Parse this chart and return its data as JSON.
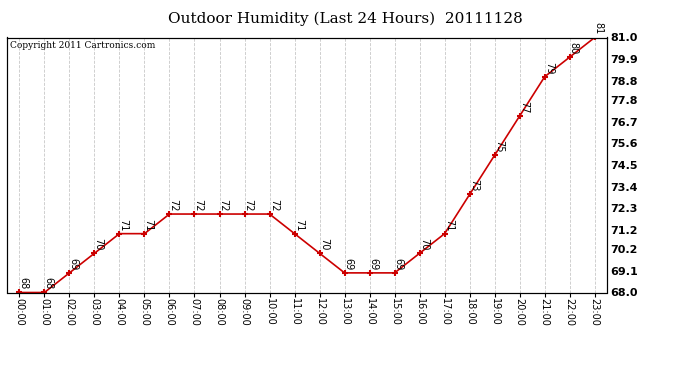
{
  "title": "Outdoor Humidity (Last 24 Hours)  20111128",
  "copyright": "Copyright 2011 Cartronics.com",
  "x_labels": [
    "00:00",
    "01:00",
    "02:00",
    "03:00",
    "04:00",
    "05:00",
    "06:00",
    "07:00",
    "08:00",
    "09:00",
    "10:00",
    "11:00",
    "12:00",
    "13:00",
    "14:00",
    "15:00",
    "16:00",
    "17:00",
    "18:00",
    "19:00",
    "20:00",
    "21:00",
    "22:00",
    "23:00"
  ],
  "y_values": [
    68,
    68,
    69,
    70,
    71,
    71,
    72,
    72,
    72,
    72,
    72,
    71,
    70,
    69,
    69,
    69,
    70,
    71,
    73,
    75,
    77,
    79,
    80,
    81
  ],
  "line_color": "#cc0000",
  "marker_color": "#cc0000",
  "bg_color": "#ffffff",
  "grid_color": "#c8c8c8",
  "yticks": [
    68.0,
    69.1,
    70.2,
    71.2,
    72.3,
    73.4,
    74.5,
    75.6,
    76.7,
    77.8,
    78.8,
    79.9,
    81.0
  ],
  "ylim_min": 68.0,
  "ylim_max": 81.0,
  "title_fontsize": 11,
  "label_fontsize": 7,
  "copyright_fontsize": 6.5,
  "xtick_fontsize": 7,
  "ytick_fontsize": 8
}
